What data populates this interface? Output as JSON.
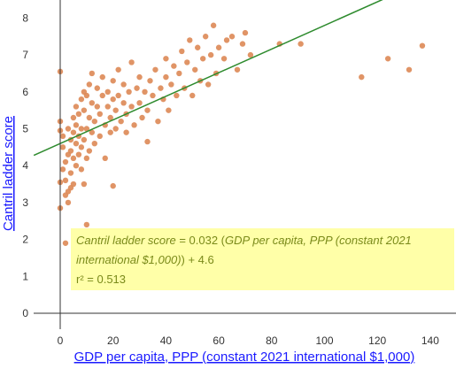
{
  "chart_data": {
    "type": "scatter",
    "xlabel": "GDP per capita, PPP (constant 2021 international $1,000)",
    "ylabel": "Cantril ladder score",
    "xlim": [
      -10,
      150
    ],
    "ylim": [
      -0.3,
      8.4
    ],
    "x_ticks": [
      "0",
      "20",
      "40",
      "60",
      "80",
      "100",
      "120",
      "140"
    ],
    "y_ticks": [
      "0",
      "1",
      "2",
      "3",
      "4",
      "5",
      "6",
      "7",
      "8"
    ],
    "grid": false,
    "colors": {
      "points": "#dd8855",
      "trendline": "#2e8b2e",
      "annotation_bg": "#ffff99",
      "annotation_text": "#7a8a1a",
      "axis_title": "#1a1aff"
    },
    "trendline": {
      "slope": 0.032,
      "intercept": 4.6
    },
    "annotation": {
      "line1_italic_a": "Cantril ladder score",
      "line1_plain": " = 0.032 (",
      "line1_italic_b": "GDP per capita, PPP (constant 2021",
      "line2_italic": "international $1,000)",
      "line2_plain": ") + 4.6",
      "line3": "r² = 0.513"
    },
    "points": [
      [
        0,
        6.55
      ],
      [
        0,
        5.2
      ],
      [
        0,
        4.95
      ],
      [
        0,
        3.55
      ],
      [
        0,
        2.85
      ],
      [
        2,
        1.9
      ],
      [
        10,
        2.4
      ],
      [
        20,
        3.45
      ],
      [
        33,
        4.65
      ],
      [
        1,
        4.8
      ],
      [
        1,
        4.5
      ],
      [
        1,
        3.9
      ],
      [
        2,
        3.2
      ],
      [
        2,
        3.6
      ],
      [
        2,
        4.1
      ],
      [
        3,
        3.0
      ],
      [
        3,
        3.3
      ],
      [
        3,
        4.3
      ],
      [
        3,
        5.0
      ],
      [
        4,
        3.4
      ],
      [
        4,
        3.8
      ],
      [
        4,
        4.4
      ],
      [
        4,
        4.7
      ],
      [
        5,
        3.5
      ],
      [
        5,
        4.2
      ],
      [
        5,
        4.9
      ],
      [
        5,
        5.3
      ],
      [
        6,
        4.0
      ],
      [
        6,
        4.6
      ],
      [
        6,
        5.1
      ],
      [
        6,
        5.6
      ],
      [
        7,
        4.3
      ],
      [
        7,
        4.8
      ],
      [
        7,
        5.4
      ],
      [
        8,
        3.9
      ],
      [
        8,
        4.5
      ],
      [
        8,
        5.0
      ],
      [
        8,
        5.8
      ],
      [
        9,
        3.5
      ],
      [
        9,
        4.7
      ],
      [
        9,
        5.5
      ],
      [
        9,
        6.0
      ],
      [
        10,
        4.2
      ],
      [
        10,
        5.0
      ],
      [
        10,
        5.9
      ],
      [
        11,
        4.4
      ],
      [
        11,
        5.3
      ],
      [
        11,
        6.2
      ],
      [
        12,
        4.9
      ],
      [
        12,
        5.7
      ],
      [
        12,
        6.5
      ],
      [
        13,
        4.6
      ],
      [
        13,
        5.2
      ],
      [
        14,
        5.6
      ],
      [
        14,
        6.1
      ],
      [
        15,
        4.8
      ],
      [
        15,
        5.4
      ],
      [
        16,
        5.9
      ],
      [
        16,
        6.4
      ],
      [
        17,
        4.2
      ],
      [
        17,
        5.1
      ],
      [
        18,
        5.6
      ],
      [
        18,
        6.0
      ],
      [
        19,
        4.9
      ],
      [
        19,
        5.3
      ],
      [
        20,
        5.8
      ],
      [
        20,
        6.3
      ],
      [
        21,
        5.0
      ],
      [
        21,
        5.5
      ],
      [
        22,
        5.9
      ],
      [
        22,
        6.6
      ],
      [
        23,
        5.2
      ],
      [
        24,
        5.7
      ],
      [
        24,
        6.2
      ],
      [
        25,
        4.9
      ],
      [
        25,
        5.4
      ],
      [
        26,
        6.0
      ],
      [
        27,
        5.6
      ],
      [
        27,
        6.8
      ],
      [
        28,
        5.1
      ],
      [
        29,
        6.1
      ],
      [
        30,
        5.7
      ],
      [
        30,
        6.4
      ],
      [
        31,
        5.3
      ],
      [
        32,
        6.0
      ],
      [
        33,
        5.5
      ],
      [
        34,
        6.3
      ],
      [
        35,
        5.9
      ],
      [
        36,
        6.6
      ],
      [
        37,
        5.2
      ],
      [
        38,
        6.1
      ],
      [
        39,
        5.8
      ],
      [
        40,
        6.4
      ],
      [
        40,
        6.9
      ],
      [
        41,
        5.5
      ],
      [
        42,
        6.2
      ],
      [
        43,
        6.7
      ],
      [
        44,
        5.9
      ],
      [
        45,
        6.5
      ],
      [
        46,
        7.1
      ],
      [
        47,
        6.1
      ],
      [
        48,
        6.8
      ],
      [
        49,
        7.4
      ],
      [
        50,
        5.9
      ],
      [
        51,
        6.6
      ],
      [
        52,
        7.2
      ],
      [
        53,
        6.3
      ],
      [
        54,
        6.9
      ],
      [
        55,
        7.5
      ],
      [
        56,
        6.2
      ],
      [
        57,
        7.0
      ],
      [
        58,
        7.8
      ],
      [
        59,
        6.5
      ],
      [
        60,
        7.2
      ],
      [
        62,
        6.9
      ],
      [
        63,
        7.4
      ],
      [
        65,
        7.5
      ],
      [
        67,
        6.6
      ],
      [
        69,
        7.3
      ],
      [
        70,
        7.6
      ],
      [
        72,
        7.0
      ],
      [
        83,
        7.3
      ],
      [
        91,
        7.3
      ],
      [
        114,
        6.4
      ],
      [
        124,
        6.9
      ],
      [
        132,
        6.6
      ],
      [
        137,
        7.25
      ]
    ]
  }
}
